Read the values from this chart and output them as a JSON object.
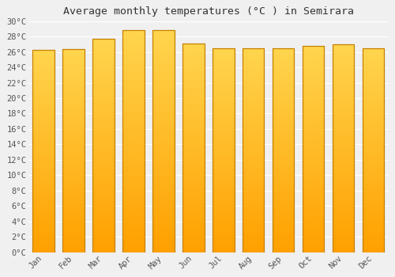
{
  "title": "Average monthly temperatures (°C ) in Semirara",
  "months": [
    "Jan",
    "Feb",
    "Mar",
    "Apr",
    "May",
    "Jun",
    "Jul",
    "Aug",
    "Sep",
    "Oct",
    "Nov",
    "Dec"
  ],
  "temperatures": [
    26.3,
    26.4,
    27.7,
    28.8,
    28.8,
    27.1,
    26.5,
    26.5,
    26.5,
    26.8,
    27.0,
    26.5
  ],
  "ylim": [
    0,
    30
  ],
  "yticks": [
    0,
    2,
    4,
    6,
    8,
    10,
    12,
    14,
    16,
    18,
    20,
    22,
    24,
    26,
    28,
    30
  ],
  "bar_color_bottom": "#FFA000",
  "bar_color_top": "#FFD54F",
  "bar_edge_color": "#C68000",
  "background_color": "#F0F0F0",
  "grid_color": "#FFFFFF",
  "title_fontsize": 9.5,
  "tick_fontsize": 7.5,
  "font_family": "monospace",
  "bar_width": 0.72,
  "n_gradient_steps": 80
}
